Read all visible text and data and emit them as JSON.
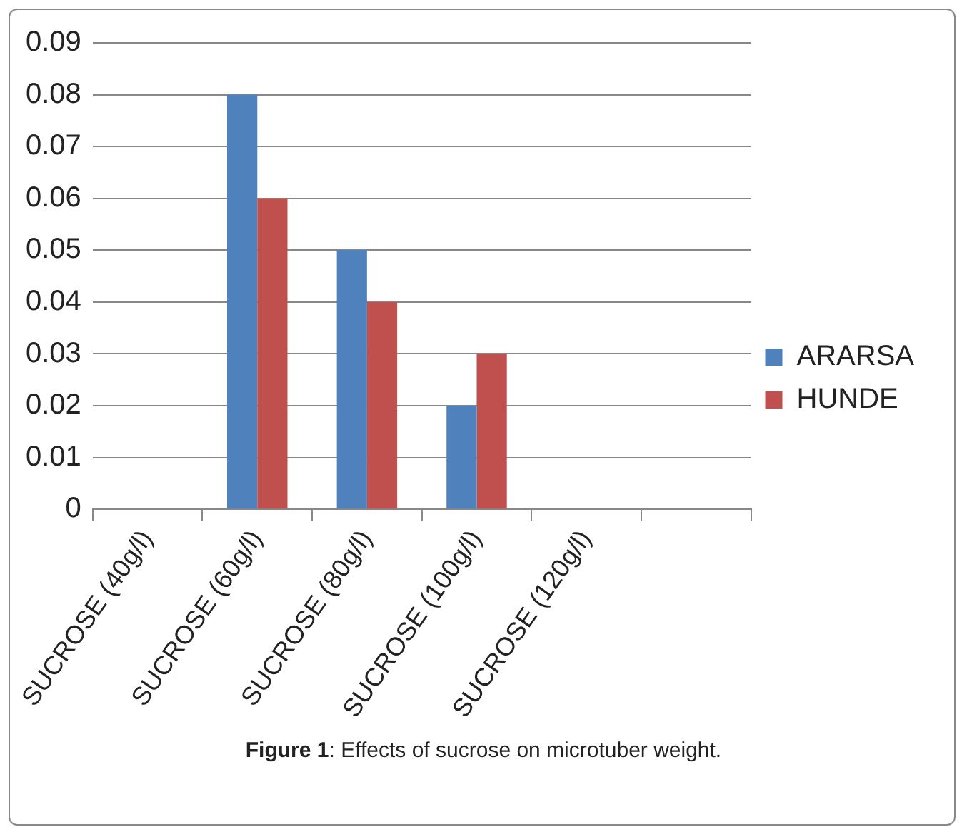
{
  "chart_data": {
    "type": "bar",
    "title": "Figure 1: Effects of sucrose on microtuber weight.",
    "categories": [
      "SUCROSE (40g/l)",
      "SUCROSE (60g/l)",
      "SUCROSE (80g/l)",
      "SUCROSE (100g/l)",
      "SUCROSE (120g/l)",
      null
    ],
    "series": [
      {
        "name": "ARARSA",
        "color": "#4f81bd",
        "values": [
          0,
          0.08,
          0.05,
          0.02,
          0,
          0
        ]
      },
      {
        "name": "HUNDE",
        "color": "#c0504d",
        "values": [
          0,
          0.06,
          0.04,
          0.03,
          0,
          0
        ]
      }
    ],
    "ylim": [
      0,
      0.09
    ],
    "yticks": [
      0,
      0.01,
      0.02,
      0.03,
      0.04,
      0.05,
      0.06,
      0.07,
      0.08,
      0.09
    ],
    "grid": "y",
    "legend": "right"
  }
}
